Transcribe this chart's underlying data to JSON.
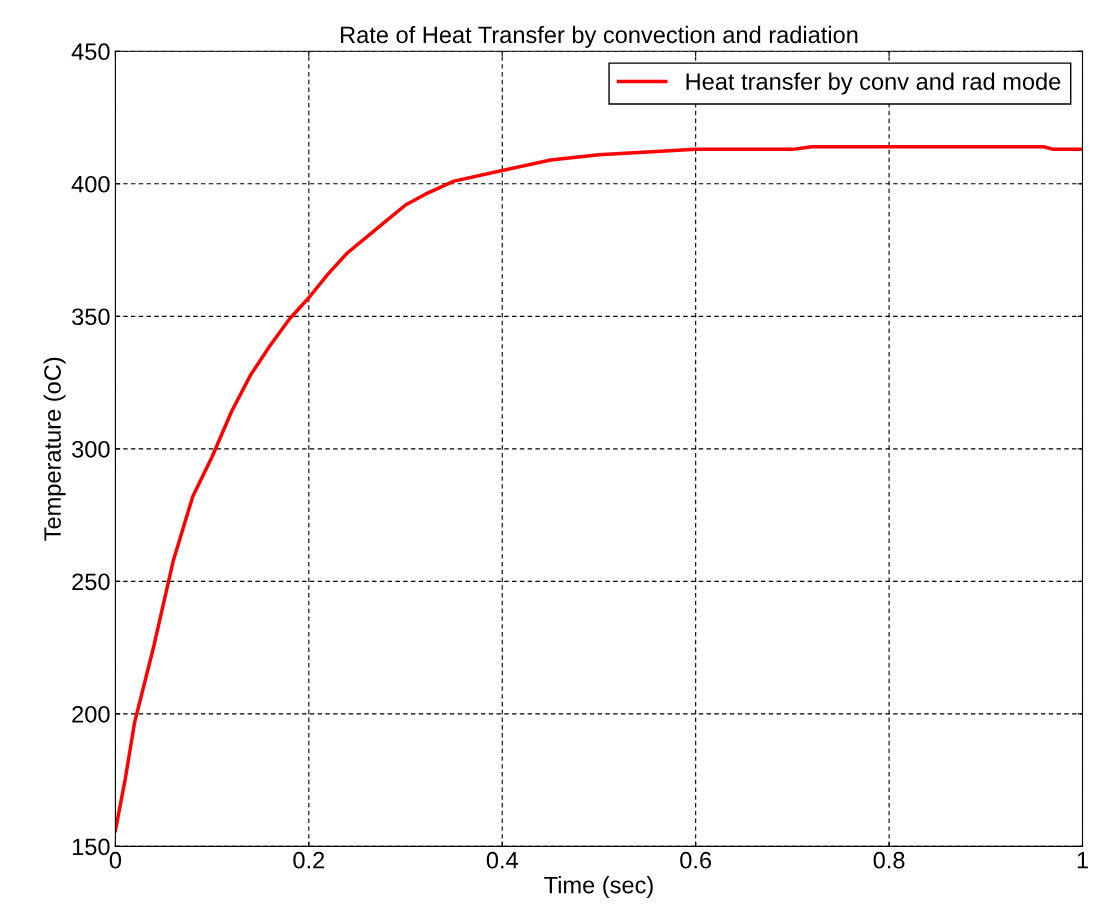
{
  "chart_data": {
    "type": "line",
    "title": "Rate of Heat Transfer by convection and radiation",
    "xlabel": "Time (sec)",
    "ylabel": "Temperature (oC)",
    "xlim": [
      0,
      1
    ],
    "xticks": [
      0,
      0.2,
      0.4,
      0.6,
      0.8,
      1
    ],
    "ylim": [
      150,
      450
    ],
    "yticks": [
      150,
      200,
      250,
      300,
      350,
      400,
      450
    ],
    "grid": true,
    "legend": "top right",
    "line_style": "solid",
    "marker": "none",
    "series": [
      {
        "name": "Heat transfer by conv and rad mode",
        "color": "#ff0000",
        "x": [
          0,
          0.01,
          0.02,
          0.04,
          0.06,
          0.08,
          0.1,
          0.12,
          0.14,
          0.16,
          0.18,
          0.2,
          0.22,
          0.24,
          0.26,
          0.28,
          0.3,
          0.32,
          0.35,
          0.4,
          0.45,
          0.5,
          0.55,
          0.6,
          0.7,
          0.72,
          0.96,
          0.97,
          1.0
        ],
        "values": [
          156,
          175,
          197,
          226,
          258,
          282,
          297,
          314,
          328,
          339,
          349,
          357,
          366,
          374,
          380,
          386,
          392,
          396,
          401,
          405,
          409,
          411,
          412,
          413,
          413,
          414,
          414,
          413,
          413
        ]
      }
    ]
  }
}
